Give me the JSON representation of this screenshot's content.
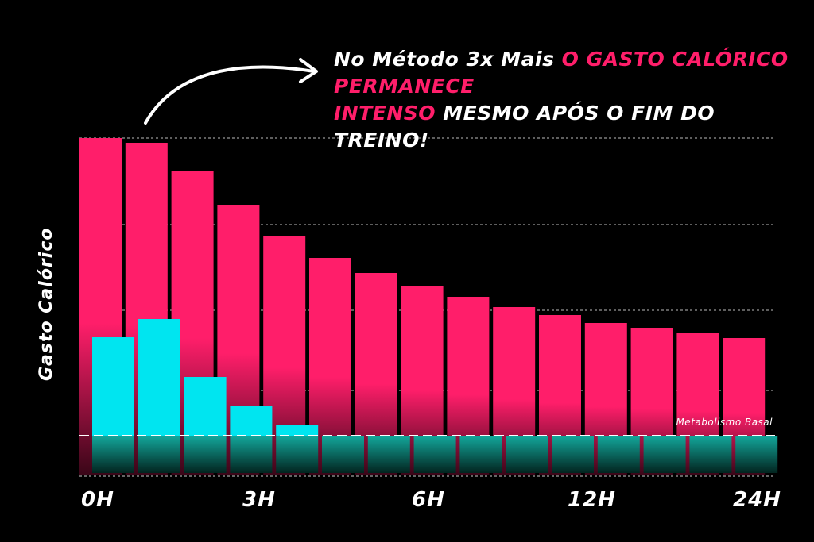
{
  "headline": {
    "part1": "No Método 3x Mais ",
    "highlight1": "O GASTO CALÓRICO PERMANECE",
    "highlight2": "INTENSO",
    "part2": " MESMO APÓS O FIM DO TREINO!"
  },
  "chart_data": {
    "type": "bar",
    "ylabel": "Gasto Calórico",
    "x_tick_labels": [
      "0H",
      "3H",
      "6H",
      "12H",
      "24H"
    ],
    "baseline_label": "Metabolismo Basal",
    "baseline_value": 0,
    "ylim": [
      -50,
      375
    ],
    "grid": "dashed horizontal",
    "series": [
      {
        "color": "#ff1e6a",
        "values": [
          375,
          369,
          333,
          291,
          251,
          224,
          205,
          188,
          175,
          162,
          152,
          142,
          136,
          129,
          123
        ]
      },
      {
        "color": "#00e5f0",
        "values": [
          124,
          147,
          74,
          38,
          13
        ]
      }
    ],
    "basal_band_color": "#0e7f78"
  }
}
